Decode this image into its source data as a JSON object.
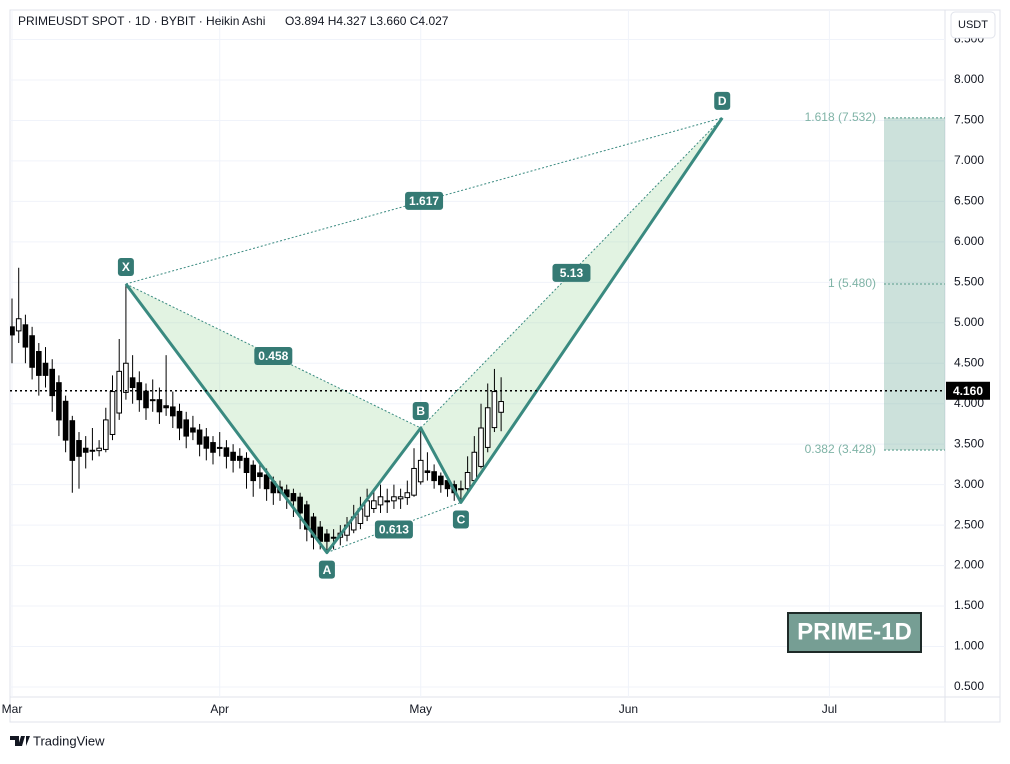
{
  "header": {
    "symbol": "PRIMEUSDT SPOT · 1D · BYBIT · Heikin Ashi",
    "ohlc": "O3.894  H4.327  L3.660  C4.027"
  },
  "currency": "USDT",
  "watermark": "PRIME-1D",
  "brand": "TradingView",
  "chart_data": {
    "type": "candlestick",
    "up_color": "#ffffff",
    "down_color": "#000000",
    "pattern_color": "#3a8a80",
    "grid": true,
    "xlim": [
      -0.3,
      139.25
    ],
    "ylim": [
      0.376,
      8.865
    ],
    "xticks": [
      {
        "value": 0,
        "label": "Mar"
      },
      {
        "value": 31,
        "label": "Apr"
      },
      {
        "value": 61,
        "label": "May"
      },
      {
        "value": 92,
        "label": "Jun"
      },
      {
        "value": 122,
        "label": "Jul"
      }
    ],
    "yticks": [
      {
        "value": 0.5,
        "label": "0.500"
      },
      {
        "value": 1,
        "label": "1.000"
      },
      {
        "value": 1.5,
        "label": "1.500"
      },
      {
        "value": 2,
        "label": "2.000"
      },
      {
        "value": 2.5,
        "label": "2.500"
      },
      {
        "value": 3,
        "label": "3.000"
      },
      {
        "value": 3.5,
        "label": "3.500"
      },
      {
        "value": 4,
        "label": "4.000"
      },
      {
        "value": 4.5,
        "label": "4.500"
      },
      {
        "value": 5,
        "label": "5.000"
      },
      {
        "value": 5.5,
        "label": "5.500"
      },
      {
        "value": 6,
        "label": "6.000"
      },
      {
        "value": 6.5,
        "label": "6.500"
      },
      {
        "value": 7,
        "label": "7.000"
      },
      {
        "value": 7.5,
        "label": "7.500"
      },
      {
        "value": 8,
        "label": "8.000"
      },
      {
        "value": 8.5,
        "label": "8.500"
      }
    ],
    "last_price": {
      "value": 4.16,
      "label": "4.160"
    },
    "candles": [
      [
        4.95,
        5.3,
        4.5,
        4.85
      ],
      [
        4.9,
        5.68,
        4.75,
        5.05
      ],
      [
        4.975,
        5.1,
        4.5,
        4.7
      ],
      [
        4.84,
        4.95,
        4.3,
        4.45
      ],
      [
        4.645,
        4.75,
        4.1,
        4.35
      ],
      [
        4.5,
        4.7,
        4.2,
        4.35
      ],
      [
        4.425,
        4.55,
        3.9,
        4.1
      ],
      [
        4.26,
        4.35,
        3.6,
        3.8
      ],
      [
        4.03,
        4.1,
        3.4,
        3.55
      ],
      [
        3.79,
        3.85,
        2.9,
        3.3
      ],
      [
        3.545,
        3.65,
        2.95,
        3.35
      ],
      [
        3.45,
        3.6,
        3.2,
        3.4
      ],
      [
        3.425,
        3.7,
        3.3,
        3.42
      ],
      [
        3.42,
        3.55,
        3.35,
        3.45
      ],
      [
        3.435,
        3.95,
        3.4,
        3.8
      ],
      [
        3.62,
        4.35,
        3.55,
        4.15
      ],
      [
        3.885,
        4.8,
        3.8,
        4.4
      ],
      [
        4.14,
        5.48,
        4.05,
        4.5
      ],
      [
        4.32,
        4.6,
        4.0,
        4.2
      ],
      [
        4.26,
        4.4,
        3.9,
        4.05
      ],
      [
        4.155,
        4.25,
        3.8,
        3.95
      ],
      [
        4.05,
        4.3,
        3.9,
        4.05
      ],
      [
        4.05,
        4.2,
        3.75,
        3.9
      ],
      [
        3.975,
        4.6,
        3.85,
        3.95
      ],
      [
        3.96,
        4.15,
        3.7,
        3.85
      ],
      [
        3.905,
        4.0,
        3.55,
        3.7
      ],
      [
        3.8,
        3.9,
        3.45,
        3.6
      ],
      [
        3.7,
        3.85,
        3.55,
        3.65
      ],
      [
        3.675,
        3.75,
        3.35,
        3.5
      ],
      [
        3.59,
        3.7,
        3.3,
        3.45
      ],
      [
        3.52,
        3.6,
        3.25,
        3.4
      ],
      [
        3.46,
        3.65,
        3.35,
        3.45
      ],
      [
        3.455,
        3.55,
        3.2,
        3.35
      ],
      [
        3.4,
        3.5,
        3.15,
        3.3
      ],
      [
        3.35,
        3.45,
        3.2,
        3.3
      ],
      [
        3.325,
        3.4,
        2.95,
        3.15
      ],
      [
        3.24,
        3.3,
        2.85,
        3.05
      ],
      [
        3.145,
        3.25,
        2.95,
        3.1
      ],
      [
        3.12,
        3.2,
        2.8,
        2.95
      ],
      [
        3.035,
        3.1,
        2.75,
        2.9
      ],
      [
        2.97,
        3.05,
        2.8,
        2.9
      ],
      [
        2.935,
        3.0,
        2.7,
        2.85
      ],
      [
        2.89,
        2.95,
        2.6,
        2.8
      ],
      [
        2.845,
        2.9,
        2.45,
        2.65
      ],
      [
        2.75,
        2.8,
        2.3,
        2.45
      ],
      [
        2.6,
        2.65,
        2.2,
        2.35
      ],
      [
        2.475,
        2.55,
        2.2,
        2.3
      ],
      [
        2.39,
        2.45,
        2.16,
        2.3
      ],
      [
        2.345,
        2.45,
        2.2,
        2.35
      ],
      [
        2.35,
        2.5,
        2.25,
        2.4
      ],
      [
        2.375,
        2.6,
        2.3,
        2.5
      ],
      [
        2.44,
        2.75,
        2.4,
        2.6
      ],
      [
        2.52,
        2.85,
        2.45,
        2.7
      ],
      [
        2.61,
        2.95,
        2.55,
        2.8
      ],
      [
        2.705,
        2.95,
        2.65,
        2.8
      ],
      [
        2.75,
        3.0,
        2.65,
        2.85
      ],
      [
        2.8,
        2.95,
        2.65,
        2.8
      ],
      [
        2.8,
        3.0,
        2.7,
        2.85
      ],
      [
        2.825,
        2.95,
        2.7,
        2.85
      ],
      [
        2.84,
        3.05,
        2.75,
        2.9
      ],
      [
        2.87,
        3.45,
        2.85,
        3.2
      ],
      [
        3.035,
        3.7,
        3.0,
        3.3
      ],
      [
        3.17,
        3.4,
        3.05,
        3.15
      ],
      [
        3.16,
        3.25,
        2.95,
        3.05
      ],
      [
        3.105,
        3.15,
        2.9,
        3.0
      ],
      [
        3.05,
        3.1,
        2.85,
        2.95
      ],
      [
        3.0,
        3.05,
        2.8,
        2.9
      ],
      [
        2.95,
        3.05,
        2.78,
        2.95
      ],
      [
        2.95,
        3.35,
        2.9,
        3.15
      ],
      [
        3.05,
        3.6,
        3.0,
        3.4
      ],
      [
        3.225,
        4.0,
        3.2,
        3.7
      ],
      [
        3.46,
        4.25,
        3.4,
        3.95
      ],
      [
        3.705,
        4.43,
        3.65,
        4.15
      ],
      [
        3.894,
        4.327,
        3.66,
        4.027
      ]
    ],
    "pattern": {
      "points": [
        {
          "label": "X",
          "x": 17,
          "value": 5.48
        },
        {
          "label": "A",
          "x": 47,
          "value": 2.16
        },
        {
          "label": "B",
          "x": 61,
          "value": 3.7
        },
        {
          "label": "C",
          "x": 67,
          "value": 2.78
        },
        {
          "label": "D",
          "x": 106,
          "value": 7.532
        }
      ],
      "ratios": [
        1.617,
        0.458,
        0.613,
        5.13
      ]
    },
    "fib_levels": [
      {
        "value": 7.532,
        "label": "1.618 (7.532)"
      },
      {
        "value": 5.48,
        "label": "1 (5.480)"
      },
      {
        "value": 3.428,
        "label": "0.382 (3.428)"
      }
    ]
  }
}
